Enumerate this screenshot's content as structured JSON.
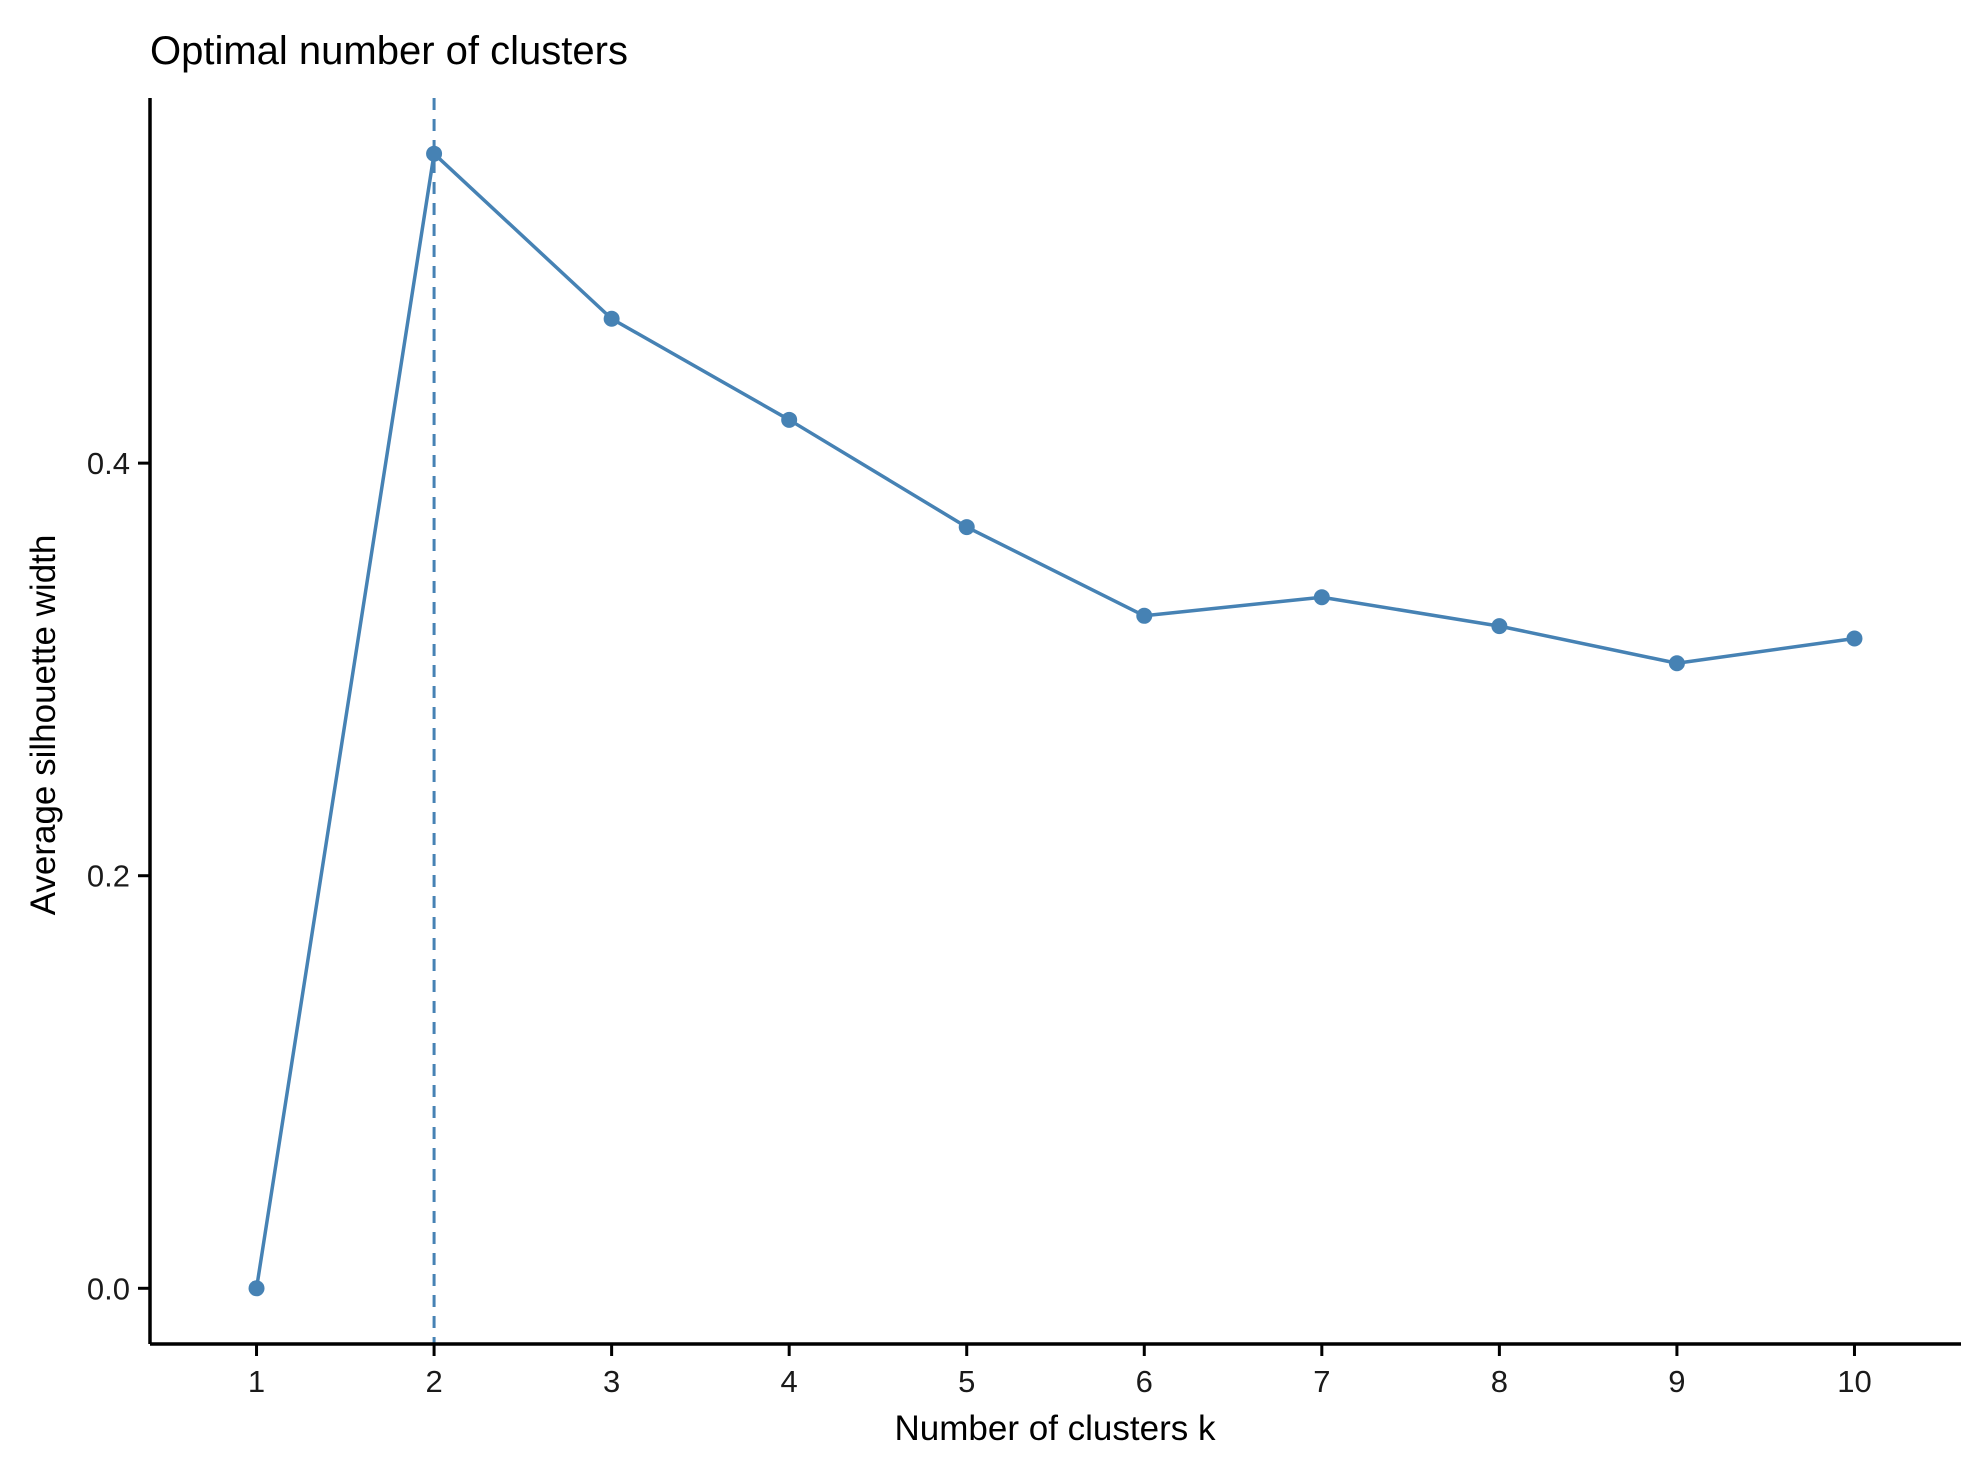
{
  "chart_data": {
    "type": "line",
    "title": "Optimal number of clusters",
    "xlabel": "Number of clusters k",
    "ylabel": "Average silhouette width",
    "x": [
      1,
      2,
      3,
      4,
      5,
      6,
      7,
      8,
      9,
      10
    ],
    "series": [
      {
        "values": [
          0.0,
          0.55,
          0.47,
          0.421,
          0.369,
          0.326,
          0.335,
          0.321,
          0.303,
          0.315
        ]
      }
    ],
    "xlim": [
      0.4,
      10.6
    ],
    "ylim": [
      -0.027,
      0.577
    ],
    "xticks": [
      "1",
      "2",
      "3",
      "4",
      "5",
      "6",
      "7",
      "8",
      "9",
      "10"
    ],
    "yticks": [
      {
        "value": 0.0,
        "label": "0.0"
      },
      {
        "value": 0.2,
        "label": "0.2"
      },
      {
        "value": 0.4,
        "label": "0.4"
      }
    ],
    "optimal_k": 2,
    "grid": false,
    "legend": "none",
    "colors": {
      "series": "#4682B4",
      "axis": "#000000"
    }
  }
}
